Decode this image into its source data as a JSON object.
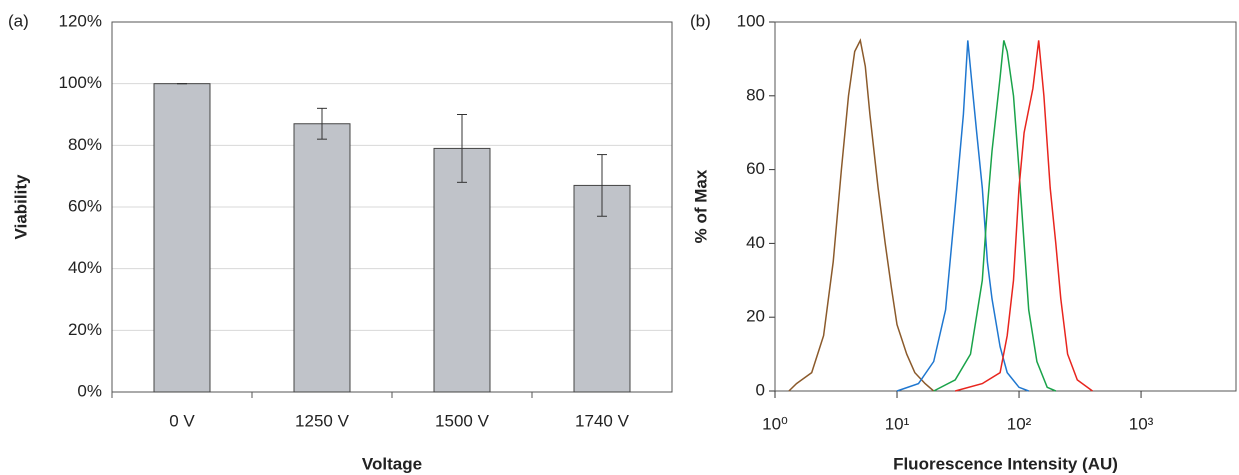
{
  "chart_data": [
    {
      "type": "bar",
      "panel_label": "(a)",
      "x_label": "Voltage",
      "y_label": "Viability",
      "categories": [
        "0 V",
        "1250 V",
        "1500 V",
        "1740 V"
      ],
      "values": [
        100,
        87,
        79,
        67
      ],
      "errors": [
        0,
        5,
        11,
        10
      ],
      "color": "#c0c3c9",
      "ylim": [
        0,
        120
      ],
      "yticks": [
        {
          "value": 0,
          "label": "0%"
        },
        {
          "value": 20,
          "label": "20%"
        },
        {
          "value": 40,
          "label": "40%"
        },
        {
          "value": 60,
          "label": "60%"
        },
        {
          "value": 80,
          "label": "80%"
        },
        {
          "value": 100,
          "label": "100%"
        },
        {
          "value": 120,
          "label": "120%"
        }
      ],
      "grid": true
    },
    {
      "type": "line",
      "panel_label": "(b)",
      "x_label": "Fluorescence Intensity (AU)",
      "y_label": "% of Max",
      "xscale": "log",
      "xlim": [
        1,
        6000
      ],
      "ylim": [
        0,
        100
      ],
      "xticks": [
        {
          "value": 1,
          "label": "10⁰"
        },
        {
          "value": 10,
          "label": "10¹"
        },
        {
          "value": 100,
          "label": "10²"
        },
        {
          "value": 1000,
          "label": "10³"
        }
      ],
      "yticks": [
        0,
        20,
        40,
        60,
        80,
        100
      ],
      "grid": false,
      "series": [
        {
          "color": "#8b5a2b",
          "x": [
            1.3,
            1.5,
            2,
            2.5,
            3,
            3.5,
            4,
            4.5,
            5,
            5.5,
            6,
            7,
            8,
            9,
            10,
            12,
            14,
            17,
            20
          ],
          "values": [
            0,
            2,
            5,
            15,
            35,
            60,
            80,
            92,
            95,
            88,
            75,
            55,
            40,
            28,
            18,
            10,
            5,
            2,
            0
          ]
        },
        {
          "color": "#1f77d0",
          "x": [
            10,
            15,
            20,
            25,
            30,
            35,
            38,
            42,
            45,
            50,
            55,
            60,
            70,
            80,
            100,
            120
          ],
          "values": [
            0,
            2,
            8,
            22,
            50,
            75,
            95,
            80,
            70,
            55,
            35,
            25,
            12,
            5,
            1,
            0
          ]
        },
        {
          "color": "#1aa34a",
          "x": [
            20,
            30,
            40,
            50,
            55,
            60,
            70,
            75,
            80,
            90,
            100,
            110,
            120,
            140,
            170,
            200
          ],
          "values": [
            0,
            3,
            10,
            30,
            50,
            65,
            85,
            95,
            92,
            80,
            60,
            40,
            22,
            8,
            1,
            0
          ]
        },
        {
          "color": "#e8251e",
          "x": [
            30,
            50,
            70,
            80,
            90,
            100,
            110,
            130,
            145,
            160,
            180,
            200,
            220,
            250,
            300,
            400
          ],
          "values": [
            0,
            2,
            5,
            15,
            30,
            55,
            70,
            82,
            95,
            80,
            55,
            40,
            25,
            10,
            3,
            0
          ]
        }
      ]
    }
  ]
}
